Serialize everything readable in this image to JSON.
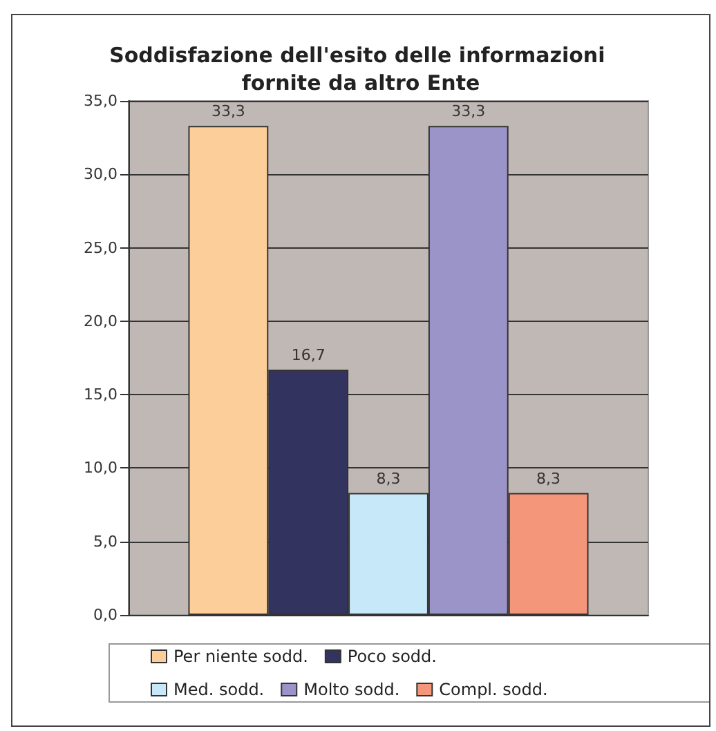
{
  "chart_data": {
    "type": "bar",
    "title": "Soddisfazione dell'esito delle informazioni fornite da altro Ente",
    "categories": [
      null
    ],
    "series": [
      {
        "name": "Per niente sodd.",
        "color": "#fccf9a",
        "values": [
          33.3
        ],
        "value_labels": [
          "33,3"
        ]
      },
      {
        "name": "Poco sodd.",
        "color": "#333360",
        "values": [
          16.7
        ],
        "value_labels": [
          "16,7"
        ]
      },
      {
        "name": "Med. sodd.",
        "color": "#c6e8f8",
        "values": [
          8.3
        ],
        "value_labels": [
          "8,3"
        ]
      },
      {
        "name": "Molto sodd.",
        "color": "#9b94c8",
        "values": [
          33.3
        ],
        "value_labels": [
          "33,3"
        ]
      },
      {
        "name": "Compl. sodd.",
        "color": "#f4967a",
        "values": [
          8.3
        ],
        "value_labels": [
          "8,3"
        ]
      }
    ],
    "ylim": [
      0,
      35
    ],
    "yticks": [
      {
        "value": 0,
        "label": "0,0"
      },
      {
        "value": 5,
        "label": "5,0"
      },
      {
        "value": 10,
        "label": "10,0"
      },
      {
        "value": 15,
        "label": "15,0"
      },
      {
        "value": 20,
        "label": "20,0"
      },
      {
        "value": 25,
        "label": "25,0"
      },
      {
        "value": 30,
        "label": "30,0"
      },
      {
        "value": 35,
        "label": "35,0"
      }
    ],
    "grid": "y",
    "legend": "bottom"
  }
}
